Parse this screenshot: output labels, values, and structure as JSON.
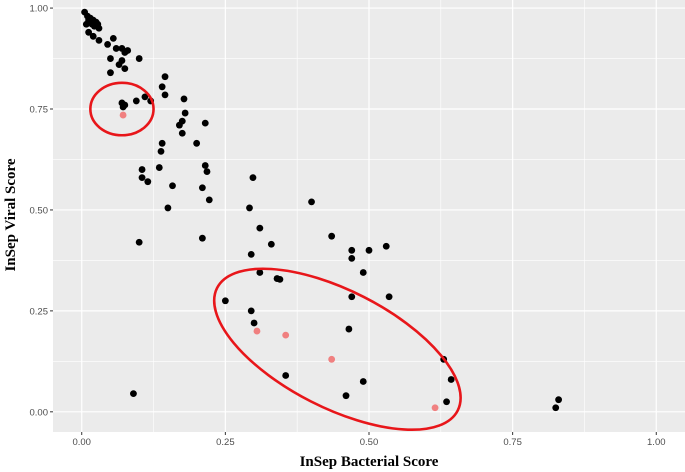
{
  "chart_data": {
    "type": "scatter",
    "title": "",
    "xlabel": "InSep Bacterial Score",
    "ylabel": "InSep Viral Score",
    "xlim": [
      -0.05,
      1.05
    ],
    "ylim": [
      -0.05,
      1.02
    ],
    "x_ticks": [
      0.0,
      0.25,
      0.5,
      0.75,
      1.0
    ],
    "x_tick_labels": [
      "0.00",
      "0.25",
      "0.50",
      "0.75",
      "1.00"
    ],
    "y_ticks": [
      0.0,
      0.25,
      0.5,
      0.75,
      1.0
    ],
    "y_tick_labels": [
      "0.00",
      "0.25",
      "0.50",
      "0.75",
      "1.00"
    ],
    "grid": true,
    "legend": "none",
    "colors": {
      "panel_background": "#ebebeb",
      "gridline": "#ffffff",
      "black_points": "#000000",
      "highlight_points": "#f08080",
      "annotation_ellipse": "#e8161a"
    },
    "series": [
      {
        "color": "#000000",
        "points": [
          [
            0.005,
            0.99
          ],
          [
            0.01,
            0.98
          ],
          [
            0.012,
            0.97
          ],
          [
            0.015,
            0.975
          ],
          [
            0.018,
            0.96
          ],
          [
            0.02,
            0.97
          ],
          [
            0.022,
            0.955
          ],
          [
            0.025,
            0.965
          ],
          [
            0.028,
            0.96
          ],
          [
            0.03,
            0.95
          ],
          [
            0.008,
            0.96
          ],
          [
            0.012,
            0.94
          ],
          [
            0.02,
            0.93
          ],
          [
            0.03,
            0.92
          ],
          [
            0.055,
            0.925
          ],
          [
            0.045,
            0.91
          ],
          [
            0.06,
            0.9
          ],
          [
            0.07,
            0.9
          ],
          [
            0.075,
            0.89
          ],
          [
            0.05,
            0.875
          ],
          [
            0.065,
            0.86
          ],
          [
            0.07,
            0.87
          ],
          [
            0.08,
            0.895
          ],
          [
            0.1,
            0.875
          ],
          [
            0.075,
            0.85
          ],
          [
            0.05,
            0.84
          ],
          [
            0.07,
            0.765
          ],
          [
            0.075,
            0.76
          ],
          [
            0.072,
            0.755
          ],
          [
            0.095,
            0.77
          ],
          [
            0.11,
            0.78
          ],
          [
            0.12,
            0.77
          ],
          [
            0.14,
            0.805
          ],
          [
            0.145,
            0.83
          ],
          [
            0.145,
            0.785
          ],
          [
            0.178,
            0.775
          ],
          [
            0.18,
            0.74
          ],
          [
            0.175,
            0.72
          ],
          [
            0.17,
            0.71
          ],
          [
            0.175,
            0.69
          ],
          [
            0.215,
            0.715
          ],
          [
            0.2,
            0.665
          ],
          [
            0.14,
            0.665
          ],
          [
            0.138,
            0.645
          ],
          [
            0.215,
            0.61
          ],
          [
            0.218,
            0.595
          ],
          [
            0.105,
            0.6
          ],
          [
            0.105,
            0.58
          ],
          [
            0.115,
            0.57
          ],
          [
            0.135,
            0.605
          ],
          [
            0.158,
            0.56
          ],
          [
            0.21,
            0.555
          ],
          [
            0.222,
            0.525
          ],
          [
            0.15,
            0.505
          ],
          [
            0.1,
            0.42
          ],
          [
            0.21,
            0.43
          ],
          [
            0.298,
            0.58
          ],
          [
            0.292,
            0.505
          ],
          [
            0.31,
            0.455
          ],
          [
            0.295,
            0.39
          ],
          [
            0.33,
            0.415
          ],
          [
            0.34,
            0.33
          ],
          [
            0.345,
            0.328
          ],
          [
            0.31,
            0.345
          ],
          [
            0.25,
            0.275
          ],
          [
            0.295,
            0.25
          ],
          [
            0.3,
            0.22
          ],
          [
            0.4,
            0.52
          ],
          [
            0.435,
            0.435
          ],
          [
            0.47,
            0.4
          ],
          [
            0.47,
            0.38
          ],
          [
            0.5,
            0.4
          ],
          [
            0.49,
            0.345
          ],
          [
            0.53,
            0.41
          ],
          [
            0.47,
            0.285
          ],
          [
            0.535,
            0.285
          ],
          [
            0.465,
            0.205
          ],
          [
            0.355,
            0.09
          ],
          [
            0.46,
            0.04
          ],
          [
            0.49,
            0.075
          ],
          [
            0.09,
            0.045
          ],
          [
            0.63,
            0.13
          ],
          [
            0.643,
            0.08
          ],
          [
            0.635,
            0.025
          ],
          [
            0.825,
            0.01
          ],
          [
            0.83,
            0.03
          ]
        ]
      },
      {
        "color": "#f08080",
        "points": [
          [
            0.072,
            0.735
          ],
          [
            0.305,
            0.2
          ],
          [
            0.355,
            0.19
          ],
          [
            0.435,
            0.13
          ],
          [
            0.615,
            0.01
          ]
        ]
      }
    ],
    "annotations": [
      {
        "shape": "ellipse",
        "color": "#e8161a",
        "center": [
          0.07,
          0.75
        ],
        "radius": [
          0.055,
          0.065
        ]
      },
      {
        "shape": "ellipse",
        "color": "#e8161a",
        "center": [
          0.445,
          0.155
        ],
        "radius": [
          0.235,
          0.145
        ],
        "rotation_deg": 27
      }
    ]
  }
}
